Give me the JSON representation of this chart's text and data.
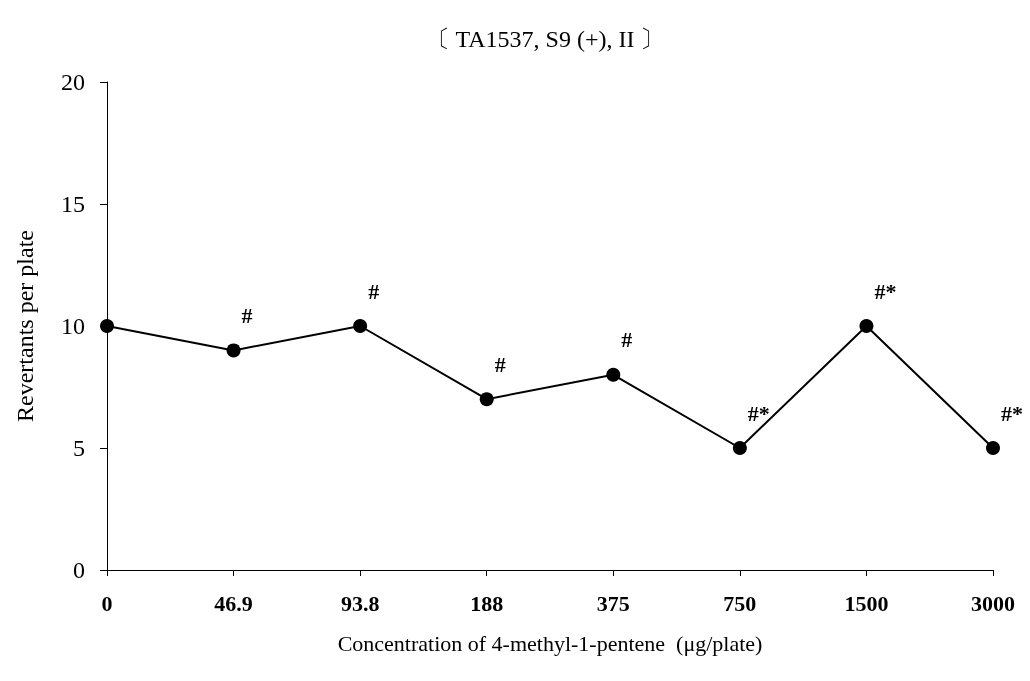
{
  "chart_data": {
    "type": "line",
    "title": "〔 TA1537, S9 (+), II 〕",
    "xlabel": "Concentration of 4-methyl-1-pentene  (μg/plate)",
    "ylabel": "Revertants per plate",
    "categories": [
      "0",
      "46.9",
      "93.8",
      "188",
      "375",
      "750",
      "1500",
      "3000"
    ],
    "series": [
      {
        "color": "#000000",
        "values": [
          10,
          9,
          10,
          7,
          8,
          5,
          10,
          5
        ]
      }
    ],
    "ylim": [
      0,
      20
    ],
    "yticks": [
      0,
      5,
      10,
      15,
      20
    ],
    "grid": false,
    "marker": "circle",
    "line_style": "solid",
    "annotations": [
      {
        "text": "#",
        "x": "46.9",
        "y": 9
      },
      {
        "text": "#",
        "x": "93.8",
        "y": 10
      },
      {
        "text": "#",
        "x": "188",
        "y": 7
      },
      {
        "text": "#",
        "x": "375",
        "y": 8
      },
      {
        "text": "#*",
        "x": "750",
        "y": 5
      },
      {
        "text": "#*",
        "x": "1500",
        "y": 10
      },
      {
        "text": "#*",
        "x": "3000",
        "y": 5
      }
    ]
  }
}
